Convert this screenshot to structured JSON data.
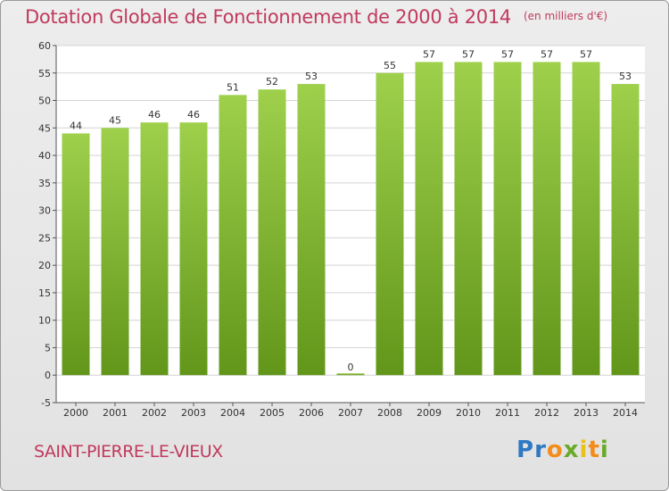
{
  "header": {
    "title": "Dotation Globale de Fonctionnement de 2000 à 2014",
    "unit": "(en milliers d'€)"
  },
  "footer": {
    "commune": "SAINT-PIERRE-LE-VIEUX",
    "logo": "Proxiti"
  },
  "colors": {
    "bar_light": "#9ed04c",
    "bar_dark": "#62961a",
    "title": "#c03a5e"
  },
  "chart_data": {
    "type": "bar",
    "title": "Dotation Globale de Fonctionnement de 2000 à 2014",
    "subtitle": "(en milliers d'€)",
    "xlabel": "",
    "ylabel": "",
    "categories": [
      "2000",
      "2001",
      "2002",
      "2003",
      "2004",
      "2005",
      "2006",
      "2007",
      "2008",
      "2009",
      "2010",
      "2011",
      "2012",
      "2013",
      "2014"
    ],
    "values": [
      44,
      45,
      46,
      46,
      51,
      52,
      53,
      0,
      55,
      57,
      57,
      57,
      57,
      57,
      53
    ],
    "ylim": [
      -5,
      60
    ],
    "yticks": [
      -5,
      0,
      5,
      10,
      15,
      20,
      25,
      30,
      35,
      40,
      45,
      50,
      55,
      60
    ],
    "grid": true,
    "legend": "none"
  }
}
